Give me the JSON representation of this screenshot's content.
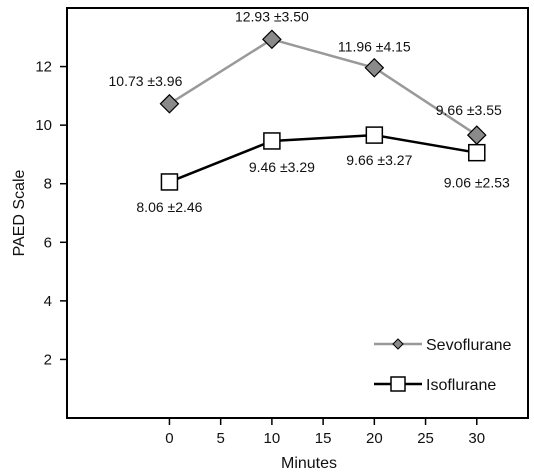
{
  "chart_data": {
    "type": "line",
    "xlabel": "Minutes",
    "ylabel": "PAED Scale",
    "x": [
      0,
      10,
      20,
      30
    ],
    "xlim": [
      -10,
      35
    ],
    "ylim": [
      0,
      14
    ],
    "x_ticks": [
      0,
      5,
      10,
      15,
      20,
      25,
      30
    ],
    "y_ticks": [
      2,
      4,
      6,
      8,
      10,
      12
    ],
    "grid": false,
    "legend_position": "bottom-right",
    "series": [
      {
        "name": "Sevoflurane",
        "values": [
          10.73,
          12.93,
          11.96,
          9.66
        ],
        "labels": [
          "10.73 ±3.96",
          "12.93 ±3.50",
          "11.96 ±4.15",
          "9.66 ±3.55"
        ],
        "marker": "diamond",
        "line_color": "#999999",
        "marker_fill": "#8a8a8a"
      },
      {
        "name": "Isoflurane",
        "values": [
          8.06,
          9.46,
          9.66,
          9.06
        ],
        "labels": [
          "8.06 ±2.46",
          "9.46 ±3.29",
          "9.66 ±3.27",
          "9.06 ±2.53"
        ],
        "marker": "square",
        "line_color": "#000000",
        "marker_fill": "#ffffff"
      }
    ]
  }
}
